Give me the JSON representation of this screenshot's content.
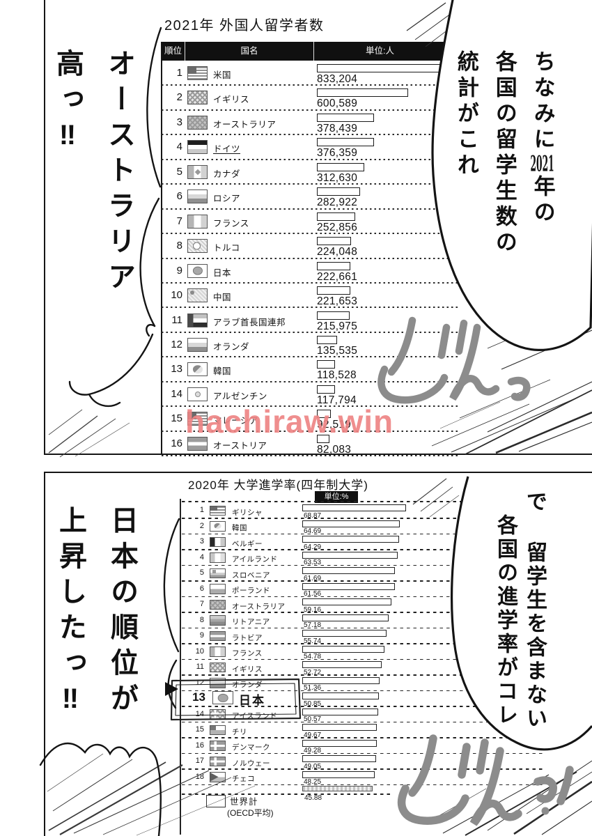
{
  "watermark": {
    "text": "hachiraw.win",
    "color": "#ee8585"
  },
  "panel1": {
    "title": "2021年 外国人留学者数",
    "header": {
      "rank": "順位",
      "country": "国名",
      "unit": "単位:人"
    },
    "rows": [
      {
        "rank": "1",
        "name": "米国",
        "flag": "us",
        "value": "833,204",
        "v": 833204
      },
      {
        "rank": "2",
        "name": "イギリス",
        "flag": "uk",
        "value": "600,589",
        "v": 600589
      },
      {
        "rank": "3",
        "name": "オーストラリア",
        "flag": "au",
        "value": "378,439",
        "v": 378439
      },
      {
        "rank": "4",
        "name": "ドイツ",
        "flag": "de",
        "value": "376,359",
        "v": 376359,
        "underline": true
      },
      {
        "rank": "5",
        "name": "カナダ",
        "flag": "ca",
        "value": "312,630",
        "v": 312630
      },
      {
        "rank": "6",
        "name": "ロシア",
        "flag": "ru",
        "value": "282,922",
        "v": 282922
      },
      {
        "rank": "7",
        "name": "フランス",
        "flag": "fr",
        "value": "252,856",
        "v": 252856
      },
      {
        "rank": "8",
        "name": "トルコ",
        "flag": "tr",
        "value": "224,048",
        "v": 224048
      },
      {
        "rank": "9",
        "name": "日本",
        "flag": "jp",
        "value": "222,661",
        "v": 222661
      },
      {
        "rank": "10",
        "name": "中国",
        "flag": "cn",
        "value": "221,653",
        "v": 221653
      },
      {
        "rank": "11",
        "name": "アラブ首長国連邦",
        "flag": "ae",
        "value": "215,975",
        "v": 215975
      },
      {
        "rank": "12",
        "name": "オランダ",
        "flag": "nl",
        "value": "135,535",
        "v": 135535
      },
      {
        "rank": "13",
        "name": "韓国",
        "flag": "kr",
        "value": "118,528",
        "v": 118528
      },
      {
        "rank": "14",
        "name": "アルゼンチン",
        "flag": "ar",
        "value": "117,794",
        "v": 117794
      },
      {
        "rank": "15",
        "name": "マレーシア",
        "flag": "my",
        "value": "92,519",
        "v": 92519
      },
      {
        "rank": "16",
        "name": "オーストリア",
        "flag": "at",
        "value": "82,083",
        "v": 82083
      }
    ],
    "speech_right": {
      "col1_pre": "ちなみに",
      "col1_num": "2021",
      "col1_post": "年の",
      "col2": "各国の留学生数の",
      "col3": "統計がこれ"
    },
    "speech_left": {
      "col1": "オーストラリア",
      "col2": "高っ‼"
    },
    "sfx": "どんっ"
  },
  "panel2": {
    "title": "2020年 大学進学率(四年制大学)",
    "unit_badge": "単位:%",
    "rows": [
      {
        "rank": "1",
        "name": "ギリシャ",
        "flag": "gr",
        "value": "68.87",
        "v": 68.87
      },
      {
        "rank": "2",
        "name": "韓国",
        "flag": "kr",
        "value": "64.69",
        "v": 64.69
      },
      {
        "rank": "3",
        "name": "ベルギー",
        "flag": "be",
        "value": "64.29",
        "v": 64.29
      },
      {
        "rank": "4",
        "name": "アイルランド",
        "flag": "ie",
        "value": "63.53",
        "v": 63.53
      },
      {
        "rank": "5",
        "name": "スロベニア",
        "flag": "si",
        "value": "61.69",
        "v": 61.69
      },
      {
        "rank": "6",
        "name": "ポーランド",
        "flag": "pl",
        "value": "61.56",
        "v": 61.56
      },
      {
        "rank": "7",
        "name": "オーストラリア",
        "flag": "au",
        "value": "59.16",
        "v": 59.16
      },
      {
        "rank": "8",
        "name": "リトアニア",
        "flag": "lt",
        "value": "57.18",
        "v": 57.18
      },
      {
        "rank": "9",
        "name": "ラトビア",
        "flag": "lv",
        "value": "55.74",
        "v": 55.74
      },
      {
        "rank": "10",
        "name": "フランス",
        "flag": "fr",
        "value": "54.78",
        "v": 54.78
      },
      {
        "rank": "11",
        "name": "イギリス",
        "flag": "uk",
        "value": "52.72",
        "v": 52.72
      },
      {
        "rank": "12",
        "name": "オランダ",
        "flag": "nl",
        "value": "51.36",
        "v": 51.36
      },
      {
        "rank": "13",
        "name": "日本",
        "flag": "jp",
        "value": "50.85",
        "v": 50.85,
        "highlight": true
      },
      {
        "rank": "14",
        "name": "アイスランド",
        "flag": "is",
        "value": "50.57",
        "v": 50.57
      },
      {
        "rank": "15",
        "name": "チリ",
        "flag": "cl",
        "value": "49.67",
        "v": 49.67
      },
      {
        "rank": "16",
        "name": "デンマーク",
        "flag": "dk",
        "value": "49.28",
        "v": 49.28
      },
      {
        "rank": "17",
        "name": "ノルウェー",
        "flag": "no",
        "value": "49.05",
        "v": 49.05
      },
      {
        "rank": "18",
        "name": "チェコ",
        "flag": "cz",
        "value": "48.25",
        "v": 48.25
      }
    ],
    "world": {
      "label": "世界計",
      "sublabel": "(OECD平均)",
      "value": "45.88",
      "v": 45.88
    },
    "speech_right": {
      "col1": "で 留学生を含まない",
      "col2": "各国の進学率がコレ"
    },
    "speech_left": {
      "col1": "日本の順位が",
      "col2": "上昇したっ‼"
    },
    "sfx": "どんっ!"
  },
  "chart_data": [
    {
      "type": "bar",
      "orientation": "horizontal",
      "title": "2021年 外国人留学者数",
      "unit": "人",
      "column_headers": [
        "順位",
        "国名",
        "単位:人"
      ],
      "categories": [
        "米国",
        "イギリス",
        "オーストラリア",
        "ドイツ",
        "カナダ",
        "ロシア",
        "フランス",
        "トルコ",
        "日本",
        "中国",
        "アラブ首長国連邦",
        "オランダ",
        "韓国",
        "アルゼンチン",
        "マレーシア",
        "オーストリア"
      ],
      "values": [
        833204,
        600589,
        378439,
        376359,
        312630,
        282922,
        252856,
        224048,
        222661,
        221653,
        215975,
        135535,
        118528,
        117794,
        92519,
        82083
      ],
      "xlim": [
        0,
        900000
      ],
      "grid": false,
      "legend": false
    },
    {
      "type": "bar",
      "orientation": "horizontal",
      "title": "2020年 大学進学率(四年制大学)",
      "unit": "%",
      "categories": [
        "ギリシャ",
        "韓国",
        "ベルギー",
        "アイルランド",
        "スロベニア",
        "ポーランド",
        "オーストラリア",
        "リトアニア",
        "ラトビア",
        "フランス",
        "イギリス",
        "オランダ",
        "日本",
        "アイスランド",
        "チリ",
        "デンマーク",
        "ノルウェー",
        "チェコ"
      ],
      "values": [
        68.87,
        64.69,
        64.29,
        63.53,
        61.69,
        61.56,
        59.16,
        57.18,
        55.74,
        54.78,
        52.72,
        51.36,
        50.85,
        50.57,
        49.67,
        49.28,
        49.05,
        48.25
      ],
      "world_average": {
        "label": "世界計(OECD平均)",
        "value": 45.88
      },
      "highlight_category": "日本",
      "xlim": [
        0,
        75
      ],
      "grid": false,
      "legend": false
    }
  ]
}
